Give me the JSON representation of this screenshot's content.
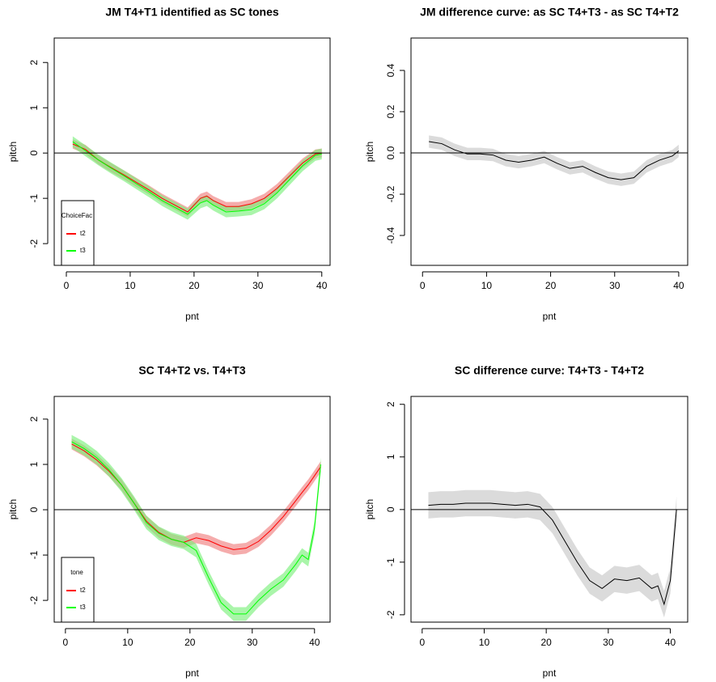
{
  "chart_data": [
    {
      "type": "line",
      "title": "JM T4+T1 identified as SC tones",
      "xlabel": "pnt",
      "ylabel": "pitch",
      "x": [
        1,
        3,
        5,
        7,
        9,
        11,
        13,
        15,
        17,
        19,
        21,
        22,
        23,
        25,
        27,
        29,
        31,
        33,
        35,
        37,
        39,
        40
      ],
      "series": [
        {
          "name": "t2",
          "color": "#ff0000",
          "band_color": "#f08080",
          "values": [
            0.2,
            0.08,
            -0.15,
            -0.32,
            -0.48,
            -0.65,
            -0.82,
            -1.0,
            -1.15,
            -1.3,
            -1.0,
            -0.95,
            -1.05,
            -1.18,
            -1.18,
            -1.12,
            -1.0,
            -0.78,
            -0.5,
            -0.22,
            -0.02,
            0.0
          ],
          "lower": [
            0.1,
            -0.02,
            -0.25,
            -0.42,
            -0.58,
            -0.75,
            -0.92,
            -1.1,
            -1.25,
            -1.4,
            -1.1,
            -1.05,
            -1.15,
            -1.28,
            -1.28,
            -1.22,
            -1.1,
            -0.88,
            -0.6,
            -0.32,
            -0.12,
            -0.1
          ],
          "upper": [
            0.3,
            0.18,
            -0.05,
            -0.22,
            -0.38,
            -0.55,
            -0.72,
            -0.9,
            -1.05,
            -1.2,
            -0.9,
            -0.85,
            -0.95,
            -1.08,
            -1.08,
            -1.02,
            -0.9,
            -0.68,
            -0.4,
            -0.12,
            0.08,
            0.1
          ]
        },
        {
          "name": "t3",
          "color": "#00ff00",
          "band_color": "#7cf07c",
          "values": [
            0.25,
            0.05,
            -0.15,
            -0.33,
            -0.5,
            -0.68,
            -0.86,
            -1.05,
            -1.2,
            -1.35,
            -1.1,
            -1.05,
            -1.15,
            -1.3,
            -1.28,
            -1.25,
            -1.12,
            -0.88,
            -0.58,
            -0.28,
            -0.05,
            -0.02
          ],
          "lower": [
            0.13,
            -0.07,
            -0.27,
            -0.45,
            -0.62,
            -0.8,
            -0.98,
            -1.17,
            -1.32,
            -1.47,
            -1.22,
            -1.17,
            -1.27,
            -1.42,
            -1.4,
            -1.37,
            -1.24,
            -1.0,
            -0.7,
            -0.4,
            -0.17,
            -0.14
          ],
          "upper": [
            0.37,
            0.17,
            -0.03,
            -0.21,
            -0.38,
            -0.56,
            -0.74,
            -0.93,
            -1.08,
            -1.23,
            -0.98,
            -0.93,
            -1.03,
            -1.18,
            -1.16,
            -1.13,
            -1.0,
            -0.76,
            -0.46,
            -0.16,
            0.07,
            0.1
          ]
        }
      ],
      "hline": 0,
      "legend": "bottomleft",
      "legend_title": "ChoiceFac",
      "xlim": [
        -1.9,
        41.3
      ],
      "xticks": [
        0,
        10,
        20,
        30,
        40
      ],
      "ylim": [
        -2.48,
        2.54
      ],
      "yticks": [
        -2,
        -1,
        0,
        1,
        2
      ]
    },
    {
      "type": "line",
      "title": "JM difference curve: as SC T4+T3 - as SC T4+T2",
      "xlabel": "pnt",
      "ylabel": "pitch",
      "x": [
        1,
        3,
        5,
        7,
        9,
        11,
        13,
        15,
        17,
        19,
        21,
        23,
        25,
        27,
        29,
        31,
        33,
        35,
        37,
        39,
        40
      ],
      "series": [
        {
          "color": "#000000",
          "band_color": "#c8c8c8",
          "values": [
            0.055,
            0.045,
            0.015,
            -0.005,
            -0.005,
            -0.01,
            -0.035,
            -0.045,
            -0.035,
            -0.02,
            -0.05,
            -0.075,
            -0.065,
            -0.095,
            -0.12,
            -0.13,
            -0.12,
            -0.065,
            -0.035,
            -0.015,
            0.01
          ],
          "lower": [
            0.025,
            0.015,
            -0.015,
            -0.035,
            -0.035,
            -0.04,
            -0.065,
            -0.075,
            -0.065,
            -0.05,
            -0.08,
            -0.105,
            -0.095,
            -0.125,
            -0.15,
            -0.16,
            -0.15,
            -0.095,
            -0.065,
            -0.045,
            -0.02
          ],
          "upper": [
            0.085,
            0.075,
            0.045,
            0.025,
            0.025,
            0.02,
            -0.005,
            -0.015,
            -0.005,
            0.01,
            -0.02,
            -0.045,
            -0.035,
            -0.065,
            -0.09,
            -0.1,
            -0.09,
            -0.035,
            -0.005,
            0.015,
            0.04
          ]
        }
      ],
      "hline": 0,
      "xlim": [
        -1.8,
        41.4
      ],
      "xticks": [
        0,
        10,
        20,
        30,
        40
      ],
      "ylim": [
        -0.545,
        0.557
      ],
      "yticks": [
        -0.4,
        -0.2,
        {
          "value": 0,
          "label": "0.0"
        },
        0.2,
        0.4
      ]
    },
    {
      "type": "line",
      "title": "SC T4+T2 vs. T4+T3",
      "xlabel": "pnt",
      "ylabel": "pitch",
      "x": [
        1,
        3,
        5,
        7,
        9,
        11,
        13,
        15,
        17,
        19,
        21,
        23,
        25,
        27,
        29,
        31,
        33,
        35,
        37,
        38,
        39,
        40,
        41
      ],
      "series": [
        {
          "name": "t2",
          "color": "#ff0000",
          "band_color": "#f08080",
          "values": [
            1.45,
            1.3,
            1.1,
            0.85,
            0.55,
            0.15,
            -0.25,
            -0.5,
            -0.65,
            -0.72,
            -0.62,
            -0.68,
            -0.8,
            -0.88,
            -0.85,
            -0.7,
            -0.45,
            -0.15,
            0.2,
            0.38,
            0.55,
            0.75,
            0.95
          ],
          "lower": [
            1.33,
            1.18,
            0.98,
            0.73,
            0.43,
            0.03,
            -0.37,
            -0.62,
            -0.77,
            -0.84,
            -0.74,
            -0.8,
            -0.92,
            -1.0,
            -0.97,
            -0.82,
            -0.57,
            -0.27,
            0.08,
            0.26,
            0.43,
            0.63,
            0.83
          ],
          "upper": [
            1.57,
            1.42,
            1.22,
            0.97,
            0.67,
            0.27,
            -0.13,
            -0.38,
            -0.53,
            -0.6,
            -0.5,
            -0.56,
            -0.68,
            -0.76,
            -0.73,
            -0.58,
            -0.33,
            -0.03,
            0.32,
            0.5,
            0.67,
            0.87,
            1.07
          ]
        },
        {
          "name": "t3",
          "color": "#00ff00",
          "band_color": "#7cf07c",
          "values": [
            1.5,
            1.35,
            1.15,
            0.88,
            0.55,
            0.15,
            -0.28,
            -0.52,
            -0.65,
            -0.72,
            -0.9,
            -1.5,
            -2.05,
            -2.3,
            -2.3,
            -2.0,
            -1.75,
            -1.55,
            -1.2,
            -1.0,
            -1.1,
            -0.4,
            1.0
          ],
          "lower": [
            1.35,
            1.2,
            1.0,
            0.73,
            0.4,
            0.0,
            -0.43,
            -0.67,
            -0.8,
            -0.87,
            -1.05,
            -1.65,
            -2.2,
            -2.45,
            -2.45,
            -2.15,
            -1.9,
            -1.7,
            -1.35,
            -1.15,
            -1.25,
            -0.55,
            0.85
          ],
          "upper": [
            1.65,
            1.5,
            1.3,
            1.03,
            0.7,
            0.3,
            -0.13,
            -0.37,
            -0.5,
            -0.57,
            -0.75,
            -1.35,
            -1.9,
            -2.15,
            -2.15,
            -1.85,
            -1.6,
            -1.4,
            -1.05,
            -0.85,
            -0.95,
            -0.25,
            1.15
          ]
        }
      ],
      "hline": 0,
      "legend": "bottomleft",
      "legend_title": "tone",
      "xlim": [
        -1.8,
        42.5
      ],
      "xticks": [
        0,
        10,
        20,
        30,
        40
      ],
      "ylim": [
        -2.48,
        2.5
      ],
      "yticks": [
        -2,
        -1,
        0,
        1,
        2
      ]
    },
    {
      "type": "line",
      "title": "SC difference curve: T4+T3 - T4+T2",
      "xlabel": "pnt",
      "ylabel": "pitch",
      "x": [
        1,
        3,
        5,
        7,
        9,
        11,
        13,
        15,
        17,
        19,
        21,
        23,
        25,
        27,
        29,
        31,
        33,
        35,
        37,
        38,
        39,
        40,
        41
      ],
      "series": [
        {
          "color": "#000000",
          "band_color": "#c8c8c8",
          "values": [
            0.08,
            0.1,
            0.1,
            0.12,
            0.12,
            0.12,
            0.1,
            0.08,
            0.1,
            0.05,
            -0.2,
            -0.6,
            -1.0,
            -1.35,
            -1.5,
            -1.32,
            -1.35,
            -1.3,
            -1.5,
            -1.45,
            -1.8,
            -1.35,
            0.0
          ],
          "lower": [
            -0.17,
            -0.15,
            -0.15,
            -0.13,
            -0.13,
            -0.13,
            -0.15,
            -0.17,
            -0.15,
            -0.2,
            -0.45,
            -0.85,
            -1.25,
            -1.6,
            -1.75,
            -1.57,
            -1.6,
            -1.55,
            -1.75,
            -1.7,
            -2.05,
            -1.6,
            -0.25
          ],
          "upper": [
            0.33,
            0.35,
            0.35,
            0.37,
            0.37,
            0.37,
            0.35,
            0.33,
            0.35,
            0.3,
            0.05,
            -0.35,
            -0.75,
            -1.1,
            -1.25,
            -1.07,
            -1.1,
            -1.05,
            -1.25,
            -1.2,
            -1.55,
            -1.1,
            0.25
          ]
        }
      ],
      "hline": 0,
      "xlim": [
        -1.8,
        42.8
      ],
      "xticks": [
        0,
        10,
        20,
        30,
        40
      ],
      "ylim": [
        -2.14,
        2.15
      ],
      "yticks": [
        -2,
        -1,
        0,
        1,
        2
      ]
    }
  ]
}
